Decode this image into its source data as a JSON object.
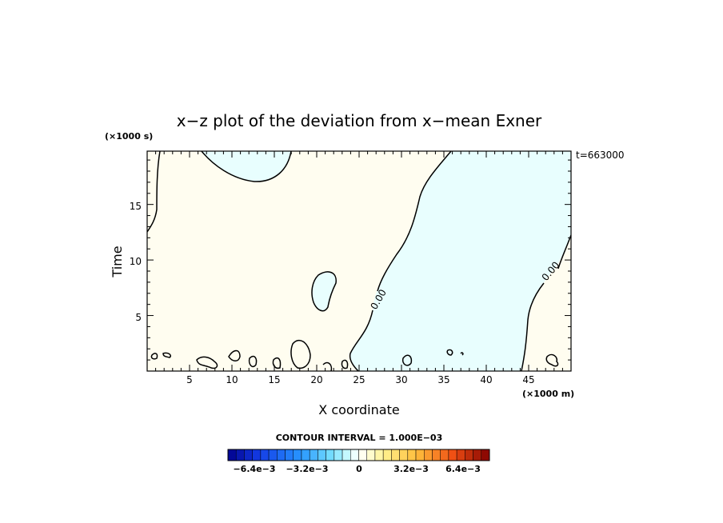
{
  "chart_data": {
    "type": "contour",
    "title": "x−z plot of the deviation from x−mean Exner",
    "xlabel": "X coordinate",
    "ylabel": "Time",
    "x_unit_label": "(×1000 m)",
    "y_unit_label": "(×1000 s)",
    "time_label": "t=663000",
    "xlim": [
      0,
      50
    ],
    "ylim": [
      0,
      19.8
    ],
    "x_ticks": [
      5,
      10,
      15,
      20,
      25,
      30,
      35,
      40,
      45
    ],
    "y_ticks": [
      5,
      10,
      15
    ],
    "contour_interval_text": "CONTOUR INTERVAL = 1.000E−03",
    "contour_labels": [
      {
        "text": "0.00",
        "x": 27.5,
        "y": 6.2
      },
      {
        "text": "0.00",
        "x": 47.4,
        "y": 9.1
      }
    ],
    "regions": [
      {
        "sign": "positive",
        "color": "#fffdf0",
        "description": ""
      },
      {
        "sign": "negative",
        "color": "#e8fefe",
        "description": ""
      }
    ],
    "colorbar": {
      "vmin": -0.008,
      "vmax": 0.008,
      "n_bins": 32,
      "tick_labels": [
        "−6.4e−3",
        "−3.2e−3",
        "0",
        "3.2e−3",
        "6.4e−3"
      ],
      "tick_values": [
        -0.0064,
        -0.0032,
        0,
        0.0032,
        0.0064
      ]
    },
    "grid": false
  }
}
